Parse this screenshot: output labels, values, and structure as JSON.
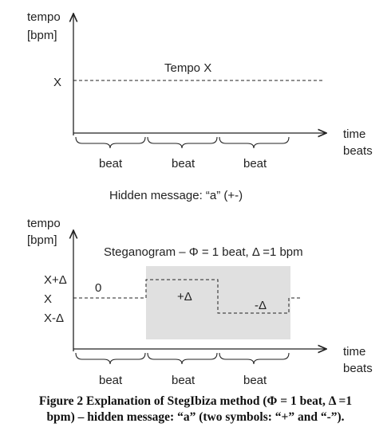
{
  "top_diagram": {
    "y_label_line1": "tempo",
    "y_label_line2": "[bpm]",
    "x_label_line1": "time",
    "x_label_line2": "beats",
    "level_label": "X",
    "line_label": "Tempo X",
    "beat_labels": [
      "beat",
      "beat",
      "beat"
    ]
  },
  "hidden_message": "Hidden message: “a” (+-)",
  "bottom_diagram": {
    "y_label_line1": "tempo",
    "y_label_line2": "[bpm]",
    "x_label_line1": "time",
    "x_label_line2": "beats",
    "title": "Steganogram – Φ = 1 beat, Δ =1 bpm",
    "level_labels": [
      "X+Δ",
      "X",
      "X-Δ"
    ],
    "segment_labels": [
      "0",
      "+Δ",
      "-Δ"
    ],
    "beat_labels": [
      "beat",
      "beat",
      "beat"
    ],
    "shade_color": "#e0e0e0"
  },
  "caption": {
    "line1": "Figure 2 Explanation of StegIbiza method (Φ = 1 beat, Δ =1",
    "line2": "bpm) – hidden message: “a” (two symbols: “+” and “-”)."
  }
}
